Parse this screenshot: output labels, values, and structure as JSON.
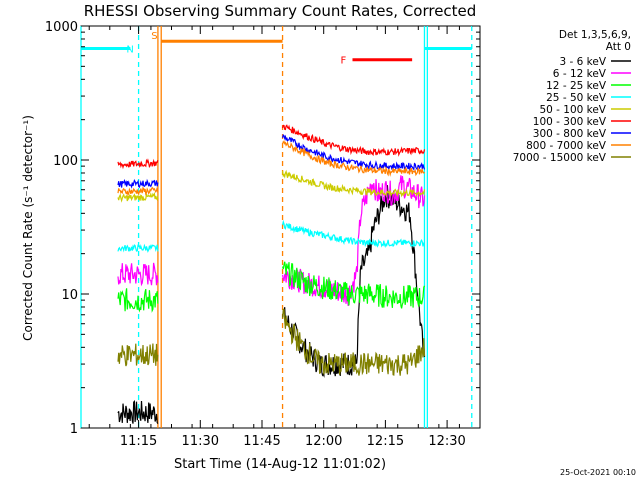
{
  "chart_data": {
    "type": "line",
    "title": "RHESSI Observing Summary Count Rates, Corrected",
    "xlabel": "Start Time (14-Aug-12 11:01:02)",
    "ylabel": "Corrected Count Rate (s⁻¹ detector⁻¹)",
    "yscale": "log",
    "ylim": [
      1,
      1000
    ],
    "xlim_minutes_after_start": [
      0,
      97
    ],
    "x_tick_labels": [
      "11:15",
      "11:30",
      "11:45",
      "12:00",
      "12:15",
      "12:30"
    ],
    "x_tick_minutes": [
      14,
      29,
      44,
      59,
      74,
      89
    ],
    "y_tick_labels": [
      "1",
      "10",
      "100",
      "1000"
    ],
    "y_ticks": [
      1,
      10,
      100,
      1000
    ],
    "footer": "25-Oct-2021 00:10",
    "legend_header": [
      "Det 1,3,5,6,9,",
      "Att 0"
    ],
    "legend_position": "right",
    "segments_minutes": [
      [
        9,
        18.7
      ],
      [
        49,
        83.5
      ]
    ],
    "series": [
      {
        "name": "3 - 6 keV",
        "color": "#000000",
        "style": "noisy",
        "seg1": {
          "x": [
            9,
            18.7
          ],
          "y": [
            1.3,
            1.3
          ]
        },
        "seg2": {
          "x": [
            49,
            54,
            58,
            62,
            65,
            67,
            68,
            70,
            71,
            74,
            76,
            78,
            80,
            83.5
          ],
          "y": [
            7,
            4,
            3,
            3,
            3,
            3,
            15,
            20,
            30,
            55,
            50,
            45,
            40,
            3
          ]
        }
      },
      {
        "name": "6 - 12 keV",
        "color": "#ff00ff",
        "style": "noisy",
        "seg1": {
          "x": [
            9,
            18.7
          ],
          "y": [
            14,
            14
          ]
        },
        "seg2": {
          "x": [
            49,
            55,
            60,
            65,
            67,
            68,
            70,
            71,
            72,
            74,
            76,
            78,
            80,
            83.5
          ],
          "y": [
            14,
            12,
            11,
            10,
            14,
            40,
            60,
            70,
            55,
            60,
            55,
            65,
            60,
            50
          ]
        }
      },
      {
        "name": "12 - 25 keV",
        "color": "#00ff00",
        "style": "noisy",
        "seg1": {
          "x": [
            9,
            18.7
          ],
          "y": [
            9,
            9
          ]
        },
        "seg2": {
          "x": [
            49,
            55,
            60,
            65,
            70,
            75,
            83.5
          ],
          "y": [
            15,
            12,
            11,
            10,
            10,
            9.5,
            9.5
          ]
        }
      },
      {
        "name": "25 - 50 keV",
        "color": "#00ffff",
        "style": "smooth",
        "seg1": {
          "x": [
            9,
            18.7
          ],
          "y": [
            22,
            22
          ]
        },
        "seg2": {
          "x": [
            49,
            55,
            60,
            65,
            70,
            75,
            83.5
          ],
          "y": [
            33,
            29,
            27,
            25,
            24,
            24,
            24
          ]
        }
      },
      {
        "name": "50 - 100 keV",
        "color": "#cccc00",
        "style": "smooth",
        "seg1": {
          "x": [
            9,
            18.7
          ],
          "y": [
            52,
            53
          ]
        },
        "seg2": {
          "x": [
            49,
            55,
            60,
            65,
            70,
            75,
            83.5
          ],
          "y": [
            80,
            70,
            63,
            60,
            58,
            57,
            57
          ]
        }
      },
      {
        "name": "100 - 300 keV",
        "color": "#ff0000",
        "style": "smooth",
        "seg1": {
          "x": [
            9,
            18.7
          ],
          "y": [
            92,
            95
          ]
        },
        "seg2": {
          "x": [
            49,
            55,
            60,
            65,
            70,
            75,
            83.5
          ],
          "y": [
            180,
            150,
            130,
            120,
            115,
            115,
            118
          ]
        }
      },
      {
        "name": "300 - 800 keV",
        "color": "#0000ff",
        "style": "smooth",
        "seg1": {
          "x": [
            9,
            18.7
          ],
          "y": [
            66,
            67
          ]
        },
        "seg2": {
          "x": [
            49,
            55,
            60,
            65,
            70,
            75,
            83.5
          ],
          "y": [
            150,
            120,
            105,
            97,
            92,
            90,
            90
          ]
        }
      },
      {
        "name": "800 - 7000 keV",
        "color": "#ff8000",
        "style": "smooth",
        "seg1": {
          "x": [
            9,
            18.7
          ],
          "y": [
            58,
            59
          ]
        },
        "seg2": {
          "x": [
            49,
            55,
            60,
            65,
            70,
            75,
            83.5
          ],
          "y": [
            135,
            110,
            95,
            88,
            84,
            82,
            82
          ]
        }
      },
      {
        "name": "7000 - 15000 keV",
        "color": "#808000",
        "style": "noisy",
        "seg1": {
          "x": [
            9,
            18.7
          ],
          "y": [
            3.5,
            3.5
          ]
        },
        "seg2": {
          "x": [
            49,
            54,
            58,
            62,
            66,
            70,
            75,
            80,
            83.5
          ],
          "y": [
            6.5,
            4,
            3,
            3,
            3,
            3,
            3,
            3,
            4
          ]
        }
      }
    ],
    "annotations": [
      {
        "label": "N",
        "color": "#00ffff",
        "type": "bar",
        "x": [
          0,
          12
        ],
        "y": 680
      },
      {
        "label": "",
        "color": "#00ffff",
        "type": "bar",
        "x": [
          83.5,
          95
        ],
        "y": 680
      },
      {
        "label": "S",
        "color": "#ff8000",
        "type": "bar",
        "x": [
          19.5,
          49
        ],
        "y": 770
      },
      {
        "label": "F",
        "color": "#ff0000",
        "type": "bar",
        "x": [
          66,
          80.5
        ],
        "y": 560
      }
    ],
    "vertical_lines": [
      {
        "x": 0,
        "color": "#00ffff",
        "dash": false
      },
      {
        "x": 14,
        "color": "#00ffff",
        "dash": true
      },
      {
        "x": 18.7,
        "color": "#ff8000",
        "dash": false
      },
      {
        "x": 19.5,
        "color": "#ff8000",
        "dash": false
      },
      {
        "x": 49,
        "color": "#ff8000",
        "dash": true
      },
      {
        "x": 83.5,
        "color": "#00ffff",
        "dash": false
      },
      {
        "x": 84.2,
        "color": "#00ffff",
        "dash": false
      },
      {
        "x": 95,
        "color": "#00ffff",
        "dash": true
      }
    ]
  }
}
